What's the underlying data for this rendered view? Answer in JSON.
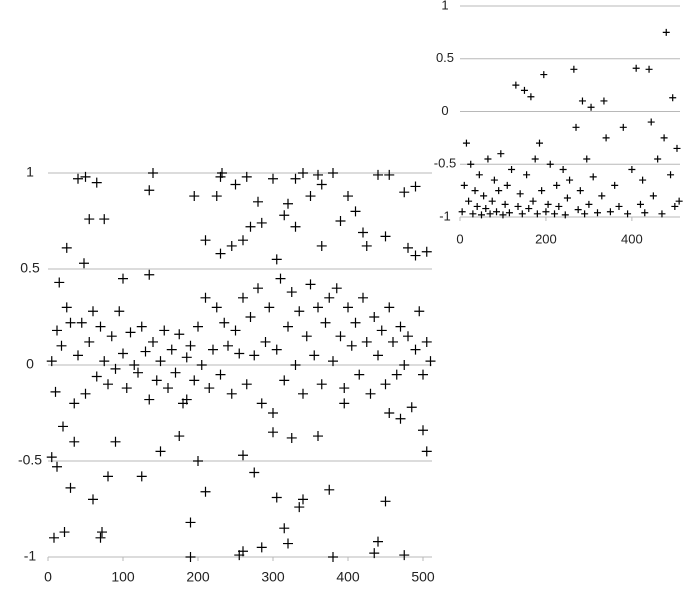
{
  "chart_data": [
    {
      "type": "scatter",
      "color": "#000000",
      "grid": true,
      "xlim": [
        0,
        512
      ],
      "ylim": [
        -1,
        1
      ],
      "xticks": [
        0,
        100,
        200,
        300,
        400,
        500
      ],
      "yticks": [
        1,
        0.5,
        0,
        -0.5,
        -1
      ],
      "x": [
        40,
        50,
        65,
        135,
        140,
        230,
        232,
        225,
        265,
        280,
        300,
        330,
        340,
        360,
        365,
        380,
        400,
        440,
        455,
        475,
        490,
        195,
        250,
        15,
        25,
        55,
        75,
        100,
        135,
        210,
        230,
        245,
        260,
        270,
        285,
        305,
        315,
        320,
        330,
        350,
        365,
        390,
        410,
        420,
        425,
        450,
        480,
        490,
        505,
        48,
        5,
        10,
        12,
        18,
        20,
        25,
        30,
        35,
        40,
        45,
        50,
        55,
        60,
        65,
        70,
        75,
        80,
        85,
        90,
        95,
        100,
        105,
        110,
        115,
        120,
        125,
        130,
        135,
        140,
        145,
        150,
        155,
        160,
        165,
        170,
        175,
        180,
        185,
        190,
        195,
        200,
        205,
        210,
        215,
        220,
        225,
        230,
        235,
        240,
        245,
        250,
        255,
        260,
        265,
        270,
        275,
        280,
        285,
        290,
        295,
        300,
        305,
        310,
        315,
        320,
        325,
        330,
        335,
        340,
        345,
        350,
        355,
        360,
        365,
        370,
        375,
        380,
        385,
        390,
        395,
        400,
        405,
        410,
        415,
        420,
        425,
        430,
        435,
        440,
        445,
        450,
        455,
        460,
        465,
        470,
        475,
        480,
        485,
        490,
        495,
        500,
        505,
        510,
        5,
        8,
        12,
        22,
        30,
        35,
        60,
        70,
        72,
        80,
        90,
        125,
        150,
        175,
        185,
        190,
        190,
        200,
        210,
        255,
        260,
        260,
        275,
        285,
        300,
        305,
        315,
        320,
        325,
        335,
        340,
        360,
        375,
        380,
        395,
        435,
        440,
        450,
        455,
        470,
        475,
        500,
        505
      ],
      "values": [
        0.97,
        0.98,
        0.95,
        0.91,
        1.0,
        0.98,
        1.0,
        0.88,
        0.98,
        0.85,
        0.97,
        0.97,
        1.0,
        0.99,
        0.94,
        1.0,
        0.88,
        0.99,
        0.99,
        0.9,
        0.93,
        0.88,
        0.94,
        0.43,
        0.61,
        0.76,
        0.76,
        0.45,
        0.47,
        0.65,
        0.58,
        0.62,
        0.65,
        0.72,
        0.74,
        0.55,
        0.78,
        0.84,
        0.72,
        0.88,
        0.62,
        0.75,
        0.8,
        0.69,
        0.62,
        0.67,
        0.61,
        0.57,
        0.59,
        0.53,
        0.02,
        -0.14,
        0.18,
        0.1,
        -0.32,
        0.3,
        0.22,
        -0.2,
        0.05,
        0.22,
        -0.15,
        0.12,
        0.28,
        -0.06,
        0.2,
        0.02,
        -0.1,
        0.15,
        -0.02,
        0.28,
        0.06,
        -0.12,
        0.17,
        0.0,
        -0.04,
        0.2,
        0.07,
        -0.18,
        0.12,
        -0.08,
        0.02,
        0.18,
        -0.12,
        0.08,
        -0.04,
        0.16,
        -0.2,
        0.04,
        0.1,
        -0.08,
        0.2,
        0.0,
        0.35,
        -0.12,
        0.08,
        0.3,
        -0.05,
        0.22,
        0.1,
        -0.15,
        0.18,
        0.06,
        0.35,
        -0.1,
        0.25,
        0.05,
        0.4,
        -0.2,
        0.12,
        0.3,
        -0.25,
        0.08,
        0.45,
        -0.08,
        0.2,
        0.38,
        0.0,
        0.28,
        -0.15,
        0.15,
        0.42,
        0.05,
        0.3,
        -0.1,
        0.22,
        0.35,
        0.02,
        0.4,
        0.15,
        -0.2,
        0.3,
        0.1,
        0.22,
        -0.05,
        0.35,
        0.12,
        -0.15,
        0.25,
        0.05,
        0.18,
        -0.1,
        0.3,
        0.12,
        -0.05,
        0.2,
        0.0,
        0.15,
        -0.22,
        0.08,
        0.28,
        -0.05,
        0.12,
        0.02,
        -0.48,
        -0.9,
        -0.53,
        -0.87,
        -0.64,
        -0.4,
        -0.7,
        -0.9,
        -0.87,
        -0.58,
        -0.4,
        -0.58,
        -0.45,
        -0.37,
        -0.18,
        -0.82,
        -1.0,
        -0.5,
        -0.66,
        -0.99,
        -0.97,
        -0.47,
        -0.56,
        -0.95,
        -0.35,
        -0.69,
        -0.85,
        -0.93,
        -0.38,
        -0.74,
        -0.7,
        -0.37,
        -0.65,
        -1.0,
        -0.12,
        -0.98,
        -0.92,
        -0.71,
        -0.25,
        -0.28,
        -0.99,
        -0.34,
        -0.45
      ]
    },
    {
      "type": "scatter",
      "color": "#000000",
      "grid": true,
      "xlim": [
        0,
        512
      ],
      "ylim": [
        -1,
        1
      ],
      "xticks": [
        0,
        200,
        400
      ],
      "yticks": [
        1,
        0.5,
        0,
        -0.5,
        -1
      ],
      "x": [
        5,
        10,
        15,
        20,
        25,
        30,
        35,
        40,
        45,
        50,
        55,
        60,
        65,
        70,
        75,
        80,
        85,
        90,
        95,
        100,
        105,
        110,
        115,
        120,
        130,
        135,
        140,
        145,
        150,
        155,
        160,
        165,
        170,
        175,
        180,
        185,
        190,
        195,
        200,
        205,
        210,
        220,
        225,
        230,
        240,
        245,
        250,
        255,
        265,
        270,
        275,
        280,
        285,
        290,
        295,
        300,
        305,
        310,
        320,
        330,
        335,
        340,
        350,
        360,
        370,
        380,
        390,
        400,
        410,
        420,
        425,
        430,
        440,
        445,
        450,
        460,
        470,
        475,
        480,
        490,
        495,
        500,
        505,
        510
      ],
      "values": [
        -0.95,
        -0.7,
        -0.3,
        -0.85,
        -0.5,
        -0.97,
        -0.75,
        -0.9,
        -0.6,
        -0.98,
        -0.8,
        -0.92,
        -0.45,
        -0.97,
        -0.85,
        -0.65,
        -0.95,
        -0.75,
        -0.4,
        -0.98,
        -0.88,
        -0.7,
        -0.96,
        -0.55,
        0.25,
        -0.9,
        -0.78,
        -0.97,
        0.2,
        -0.6,
        -0.92,
        0.14,
        -0.85,
        -0.45,
        -0.97,
        -0.3,
        -0.75,
        0.35,
        -0.95,
        -0.88,
        -0.5,
        -0.97,
        -0.7,
        -0.9,
        -0.55,
        -0.98,
        -0.82,
        -0.65,
        0.4,
        -0.15,
        -0.93,
        -0.75,
        0.1,
        -0.97,
        -0.45,
        -0.88,
        0.04,
        -0.62,
        -0.96,
        -0.8,
        0.1,
        -0.25,
        -0.95,
        -0.7,
        -0.9,
        -0.15,
        -0.97,
        -0.55,
        0.41,
        -0.88,
        -0.65,
        -0.96,
        0.4,
        -0.1,
        -0.8,
        -0.45,
        -0.97,
        -0.25,
        0.75,
        -0.6,
        0.13,
        -0.9,
        -0.35,
        -0.85
      ]
    }
  ]
}
